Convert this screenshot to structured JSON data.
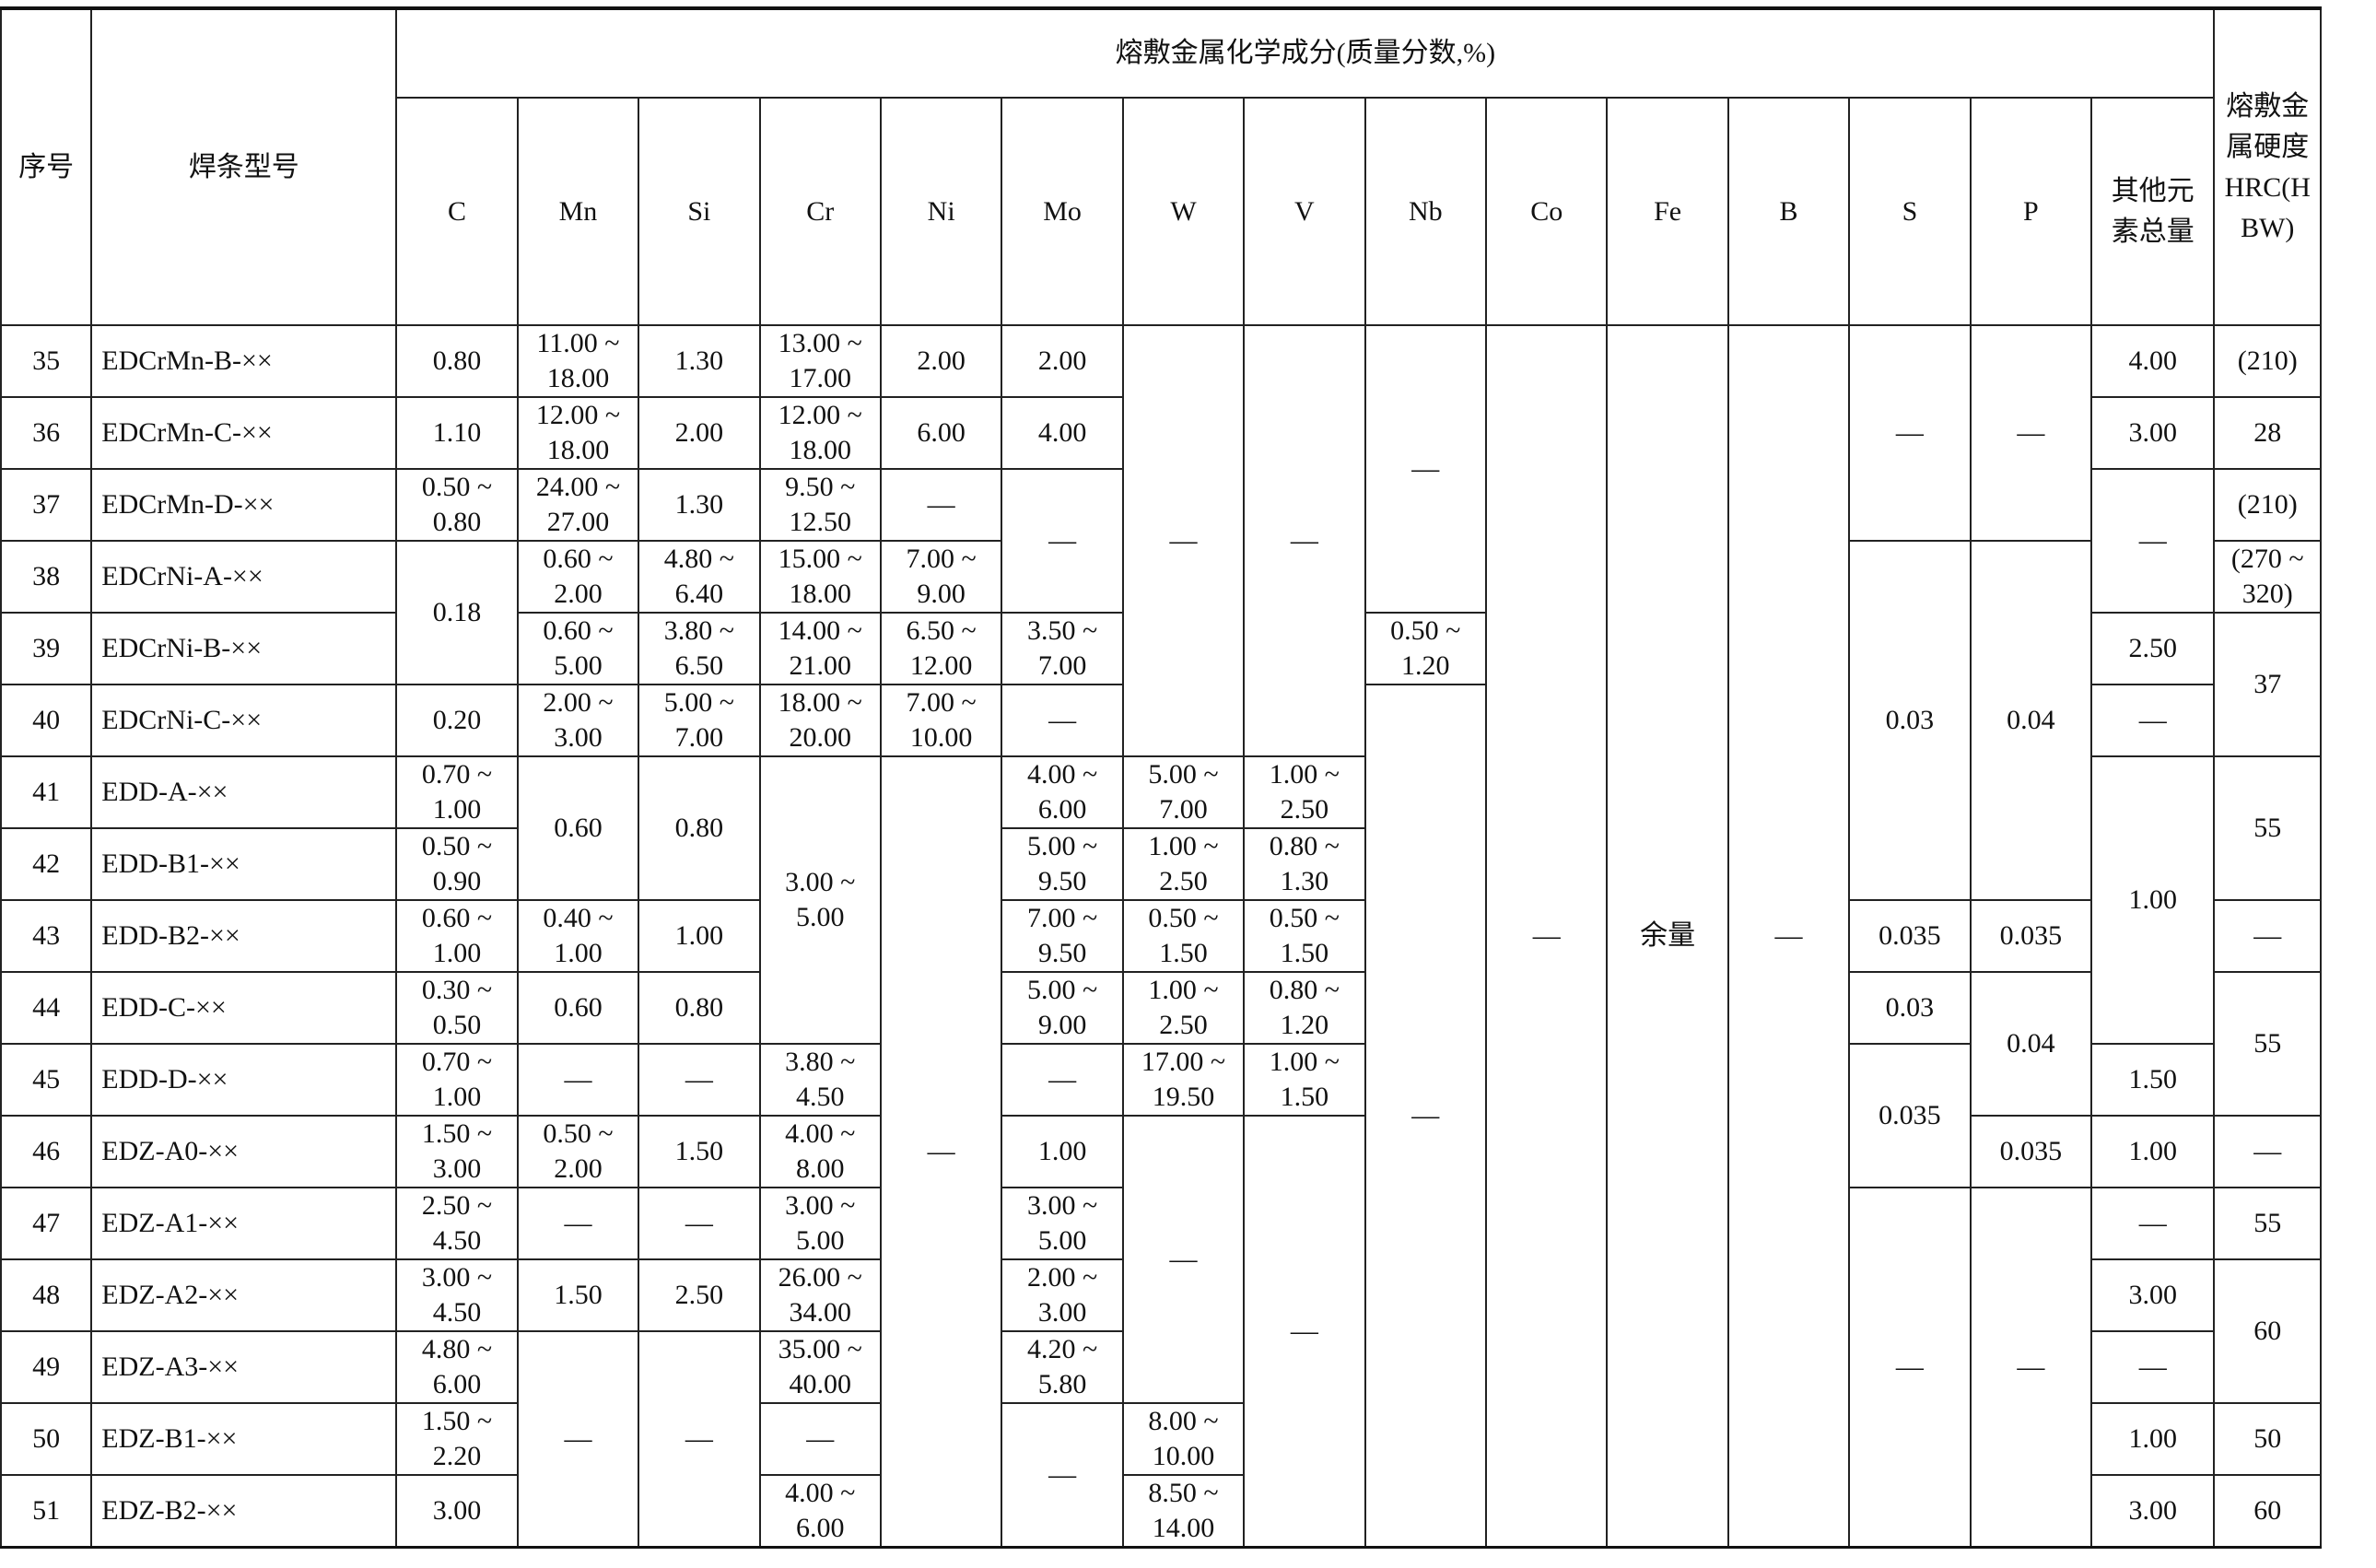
{
  "table": {
    "header": {
      "no": "序号",
      "model": "焊条型号",
      "composition": "熔敷金属化学成分(质量分数,%)",
      "hardness": "熔敷金属硬度HRC(HBW)",
      "elements": [
        "C",
        "Mn",
        "Si",
        "Cr",
        "Ni",
        "Mo",
        "W",
        "V",
        "Nb",
        "Co",
        "Fe",
        "B",
        "S",
        "P",
        "其他元素总量"
      ]
    },
    "rows": [
      {
        "cells": [
          "35",
          "EDCrMn-B-××",
          "0.80",
          "11.00 ~ 18.00",
          "1.30",
          "13.00 ~ 17.00",
          "2.00",
          "2.00",
          {
            "v": "—",
            "span": 6
          },
          {
            "v": "—",
            "span": 6
          },
          {
            "v": "—",
            "span": 4
          },
          {
            "v": "—",
            "span": 17
          },
          {
            "v": "余量",
            "span": 17
          },
          {
            "v": "—",
            "span": 17
          },
          {
            "v": "—",
            "span": 3
          },
          {
            "v": "—",
            "span": 3
          },
          "4.00",
          "(210)"
        ]
      },
      {
        "cells": [
          "36",
          "EDCrMn-C-××",
          "1.10",
          "12.00 ~ 18.00",
          "2.00",
          "12.00 ~ 18.00",
          "6.00",
          "4.00",
          "3.00",
          "28"
        ]
      },
      {
        "cells": [
          "37",
          "EDCrMn-D-××",
          "0.50 ~ 0.80",
          "24.00 ~ 27.00",
          "1.30",
          "9.50 ~ 12.50",
          "—",
          {
            "v": "—",
            "span": 2
          },
          {
            "v": "—",
            "span": 2
          },
          "(210)"
        ]
      },
      {
        "cells": [
          "38",
          "EDCrNi-A-××",
          {
            "v": "0.18",
            "span": 2
          },
          "0.60 ~ 2.00",
          "4.80 ~ 6.40",
          "15.00 ~ 18.00",
          "7.00 ~ 9.00",
          {
            "v": "0.03",
            "span": 5
          },
          {
            "v": "0.04",
            "span": 5
          },
          "(270 ~ 320)"
        ]
      },
      {
        "cells": [
          "39",
          "EDCrNi-B-××",
          "0.60 ~ 5.00",
          "3.80 ~ 6.50",
          "14.00 ~ 21.00",
          "6.50 ~ 12.00",
          "3.50 ~ 7.00",
          "0.50 ~ 1.20",
          "2.50",
          {
            "v": "37",
            "span": 2
          }
        ]
      },
      {
        "cells": [
          "40",
          "EDCrNi-C-××",
          "0.20",
          "2.00 ~ 3.00",
          "5.00 ~ 7.00",
          "18.00 ~ 20.00",
          "7.00 ~ 10.00",
          "—",
          {
            "v": "—",
            "span": 12
          },
          "—"
        ]
      },
      {
        "cells": [
          "41",
          "EDD-A-××",
          "0.70 ~ 1.00",
          {
            "v": "0.60",
            "span": 2
          },
          {
            "v": "0.80",
            "span": 2
          },
          {
            "v": "3.00 ~ 5.00",
            "span": 4
          },
          {
            "v": "—",
            "span": 11
          },
          "4.00 ~ 6.00",
          "5.00 ~ 7.00",
          "1.00 ~ 2.50",
          {
            "v": "1.00",
            "span": 4
          },
          {
            "v": "55",
            "span": 2
          }
        ]
      },
      {
        "cells": [
          "42",
          "EDD-B1-××",
          "0.50 ~ 0.90",
          "5.00 ~ 9.50",
          "1.00 ~ 2.50",
          "0.80 ~ 1.30"
        ]
      },
      {
        "cells": [
          "43",
          "EDD-B2-××",
          "0.60 ~ 1.00",
          "0.40 ~ 1.00",
          "1.00",
          "7.00 ~ 9.50",
          "0.50 ~ 1.50",
          "0.50 ~ 1.50",
          "0.035",
          "0.035",
          "—"
        ]
      },
      {
        "cells": [
          "44",
          "EDD-C-××",
          "0.30 ~ 0.50",
          "0.60",
          "0.80",
          "5.00 ~ 9.00",
          "1.00 ~ 2.50",
          "0.80 ~ 1.20",
          "0.03",
          {
            "v": "0.04",
            "span": 2
          },
          {
            "v": "55",
            "span": 2
          }
        ]
      },
      {
        "cells": [
          "45",
          "EDD-D-××",
          "0.70 ~ 1.00",
          "—",
          "—",
          "3.80 ~ 4.50",
          "—",
          "17.00 ~ 19.50",
          "1.00 ~ 1.50",
          {
            "v": "0.035",
            "span": 2
          },
          "1.50"
        ]
      },
      {
        "cells": [
          "46",
          "EDZ-A0-××",
          "1.50 ~ 3.00",
          "0.50 ~ 2.00",
          "1.50",
          "4.00 ~ 8.00",
          "1.00",
          {
            "v": "—",
            "span": 4
          },
          {
            "v": "—",
            "span": 6
          },
          "0.035",
          "1.00",
          "—"
        ]
      },
      {
        "cells": [
          "47",
          "EDZ-A1-××",
          "2.50 ~ 4.50",
          "—",
          "—",
          "3.00 ~ 5.00",
          "3.00 ~ 5.00",
          {
            "v": "—",
            "span": 5
          },
          {
            "v": "—",
            "span": 5
          },
          "—",
          "55"
        ]
      },
      {
        "cells": [
          "48",
          "EDZ-A2-××",
          "3.00 ~ 4.50",
          "1.50",
          "2.50",
          "26.00 ~ 34.00",
          "2.00 ~ 3.00",
          "3.00",
          {
            "v": "60",
            "span": 2
          }
        ]
      },
      {
        "cells": [
          "49",
          "EDZ-A3-××",
          "4.80 ~ 6.00",
          {
            "v": "—",
            "span": 3
          },
          {
            "v": "—",
            "span": 3
          },
          "35.00 ~ 40.00",
          "4.20 ~ 5.80",
          "—"
        ]
      },
      {
        "cells": [
          "50",
          "EDZ-B1-××",
          "1.50 ~ 2.20",
          "—",
          {
            "v": "—",
            "span": 2
          },
          "8.00 ~ 10.00",
          "1.00",
          "50"
        ]
      },
      {
        "cells": [
          "51",
          "EDZ-B2-××",
          "3.00",
          "4.00 ~ 6.00",
          "8.50 ~ 14.00",
          "3.00",
          "60"
        ]
      }
    ]
  }
}
